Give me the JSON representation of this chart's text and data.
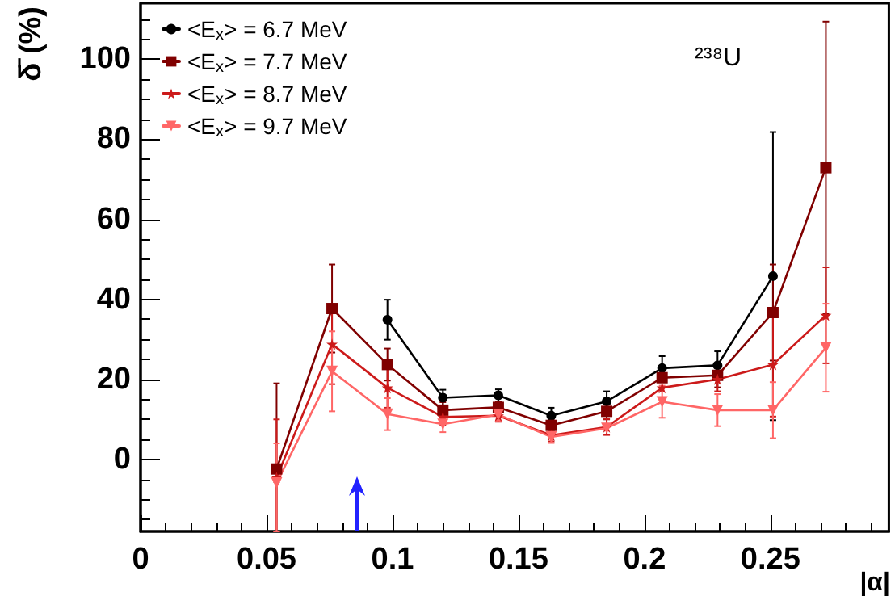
{
  "chart_data": {
    "type": "line",
    "xlabel": "|α|",
    "ylabel": "δ̄ (%)",
    "annotations": [
      "²³⁸U"
    ],
    "x": [
      0.054,
      0.076,
      0.098,
      0.12,
      0.142,
      0.163,
      0.185,
      0.207,
      0.229,
      0.251,
      0.272
    ],
    "series": [
      {
        "name": "<E$_{x}$> = 6.7 MeV",
        "color": "#000000",
        "marker": "circle",
        "values": [
          null,
          null,
          34.9,
          15.4,
          16,
          10.9,
          14.5,
          22.8,
          23.5,
          45.8,
          null
        ],
        "errors": [
          null,
          null,
          5,
          2,
          1.5,
          2,
          2.5,
          3,
          3.5,
          36,
          null
        ]
      },
      {
        "name": "<E$_{x}$> = 7.7 MeV",
        "color": "#800000",
        "marker": "square",
        "values": [
          -2.4,
          37.7,
          23.7,
          12.3,
          13,
          8.5,
          12,
          20.4,
          21,
          36.7,
          72.9
        ],
        "errors": [
          [
            -18,
            19
          ],
          11,
          4,
          2,
          1.5,
          1.5,
          2,
          null,
          3,
          12,
          36.5
        ]
      },
      {
        "name": "<E$_{x}$> = 8.7 MeV",
        "color": "#cc1a1a",
        "marker": "star",
        "values": [
          -4.5,
          28.8,
          17.9,
          10.6,
          10.9,
          6,
          8.1,
          17.9,
          20,
          23.7,
          36
        ],
        "errors": [
          [
            -18,
            10
          ],
          10,
          5,
          2,
          1.5,
          1.5,
          2,
          null,
          3,
          13,
          12
        ]
      },
      {
        "name": "<E$_{x}$> = 9.7 MeV",
        "color": "#ff6666",
        "marker": "triangle",
        "values": [
          -5.9,
          22,
          11.3,
          8.8,
          11.2,
          5.6,
          7.8,
          14.4,
          12.3,
          12.3,
          27.9
        ],
        "errors": [
          [
            -18,
            4
          ],
          10,
          4,
          2,
          1.5,
          1.5,
          null,
          4,
          4,
          7,
          11
        ]
      }
    ],
    "xlim": [
      0,
      0.297
    ],
    "xticks": [
      0,
      0.05,
      0.1,
      0.15,
      0.2,
      0.25
    ],
    "ylim": [
      -18,
      114
    ],
    "yticks": [
      0,
      20,
      40,
      60,
      80,
      100
    ],
    "legend": "top left",
    "grid": false,
    "line_style": "solid"
  }
}
